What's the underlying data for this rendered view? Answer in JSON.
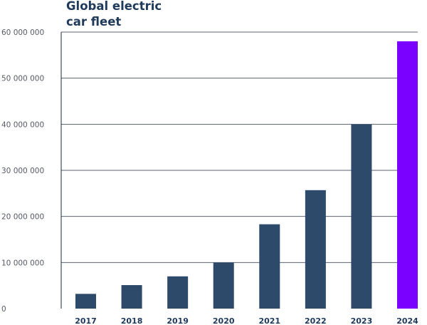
{
  "chart_data": {
    "type": "bar",
    "title": [
      "Global electric",
      "car fleet"
    ],
    "categories": [
      "2017",
      "2018",
      "2019",
      "2020",
      "2021",
      "2022",
      "2023",
      "2024"
    ],
    "values": [
      3200000,
      5100000,
      7000000,
      10000000,
      18300000,
      25700000,
      40000000,
      58000000
    ],
    "highlight_category": "2024",
    "colors": {
      "bar": "#2d4a6b",
      "highlight": "#7a00ff",
      "grid": "#5c6270",
      "axis": "#1f2937"
    },
    "ylim": [
      0,
      60000000
    ],
    "yticks": [
      0,
      10000000,
      20000000,
      30000000,
      40000000,
      50000000,
      60000000
    ],
    "ytick_labels": [
      "0",
      "10 000 000",
      "20 000 000",
      "30 000 000",
      "40 000 000",
      "50 000 000",
      "60 000 000"
    ],
    "grid": true,
    "xlabel": "",
    "ylabel": ""
  }
}
